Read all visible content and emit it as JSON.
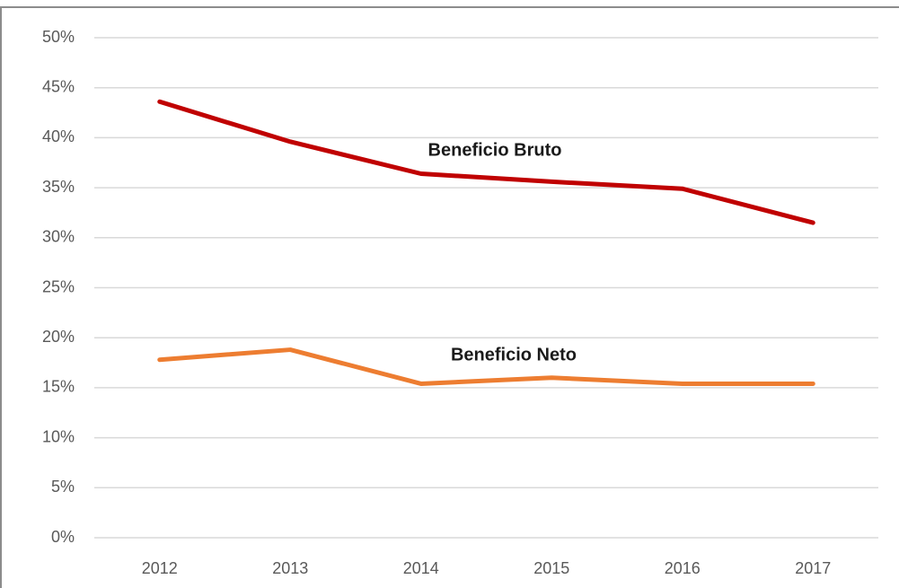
{
  "chart_data": {
    "type": "line",
    "categories": [
      "2012",
      "2013",
      "2014",
      "2015",
      "2016",
      "2017"
    ],
    "series": [
      {
        "name": "Beneficio Bruto",
        "color": "#c00000",
        "values": [
          43.6,
          39.6,
          36.4,
          35.6,
          34.9,
          31.5
        ]
      },
      {
        "name": "Beneficio Neto",
        "color": "#ed7d31",
        "values": [
          17.8,
          18.8,
          15.4,
          16.0,
          15.4,
          15.4
        ]
      }
    ],
    "ylim": [
      0,
      50
    ],
    "yticks": [
      {
        "value": 0,
        "label": "0%"
      },
      {
        "value": 5,
        "label": "5%"
      },
      {
        "value": 10,
        "label": "10%"
      },
      {
        "value": 15,
        "label": "15%"
      },
      {
        "value": 20,
        "label": "20%"
      },
      {
        "value": 25,
        "label": "25%"
      },
      {
        "value": 30,
        "label": "30%"
      },
      {
        "value": 35,
        "label": "35%"
      },
      {
        "value": 40,
        "label": "40%"
      },
      {
        "value": 45,
        "label": "45%"
      },
      {
        "value": 50,
        "label": "50%"
      }
    ],
    "grid": true
  }
}
